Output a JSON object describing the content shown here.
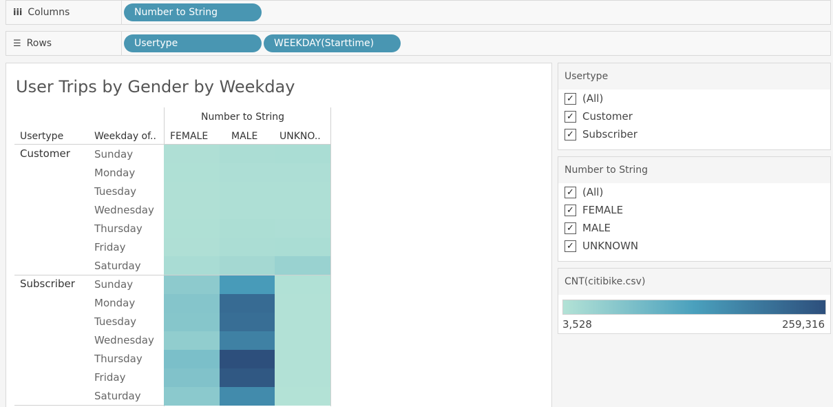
{
  "shelves": {
    "columns": {
      "label": "Columns",
      "glyph": "iii",
      "pills": [
        "Number to String"
      ]
    },
    "rows": {
      "label": "Rows",
      "glyph": "☰",
      "pills": [
        "Usertype",
        "WEEKDAY(Starttime)"
      ]
    }
  },
  "viz": {
    "title": "User Trips by Gender by Weekday",
    "column_group_header": "Number to String",
    "row_headers": [
      "Usertype",
      "Weekday of.."
    ],
    "columns": [
      "FEMALE",
      "MALE",
      "UNKNO.."
    ],
    "usertypes": [
      "Customer",
      "Subscriber"
    ],
    "weekdays": [
      "Sunday",
      "Monday",
      "Tuesday",
      "Wednesday",
      "Thursday",
      "Friday",
      "Saturday"
    ]
  },
  "chart_data": {
    "type": "heatmap",
    "title": "User Trips by Gender by Weekday",
    "color_measure": "CNT(citibike.csv)",
    "color_range": [
      3528,
      259316
    ],
    "color_low": "#b3e2d6",
    "color_mid": "#4aa0bd",
    "color_high": "#2d4f7c",
    "x": [
      "FEMALE",
      "MALE",
      "UNKNO.."
    ],
    "y": [
      "Customer / Sunday",
      "Customer / Monday",
      "Customer / Tuesday",
      "Customer / Wednesday",
      "Customer / Thursday",
      "Customer / Friday",
      "Customer / Saturday",
      "Subscriber / Sunday",
      "Subscriber / Monday",
      "Subscriber / Tuesday",
      "Subscriber / Wednesday",
      "Subscriber / Thursday",
      "Subscriber / Friday",
      "Subscriber / Saturday"
    ],
    "values": [
      [
        9000,
        13000,
        14000
      ],
      [
        8000,
        11000,
        11000
      ],
      [
        7000,
        10000,
        10000
      ],
      [
        7000,
        10000,
        10000
      ],
      [
        8000,
        12000,
        11000
      ],
      [
        9000,
        13000,
        14000
      ],
      [
        16000,
        22000,
        35000
      ],
      [
        50000,
        140000,
        6000
      ],
      [
        60000,
        215000,
        5000
      ],
      [
        58000,
        210000,
        5000
      ],
      [
        45000,
        180000,
        5000
      ],
      [
        72000,
        259316,
        4500
      ],
      [
        65000,
        245000,
        4500
      ],
      [
        52000,
        165000,
        3528
      ]
    ]
  },
  "filters": [
    {
      "title": "Usertype",
      "items": [
        "(All)",
        "Customer",
        "Subscriber"
      ]
    },
    {
      "title": "Number to String",
      "items": [
        "(All)",
        "FEMALE",
        "MALE",
        "UNKNOWN"
      ]
    }
  ],
  "legend": {
    "title": "CNT(citibike.csv)",
    "min_label": "3,528",
    "max_label": "259,316"
  }
}
